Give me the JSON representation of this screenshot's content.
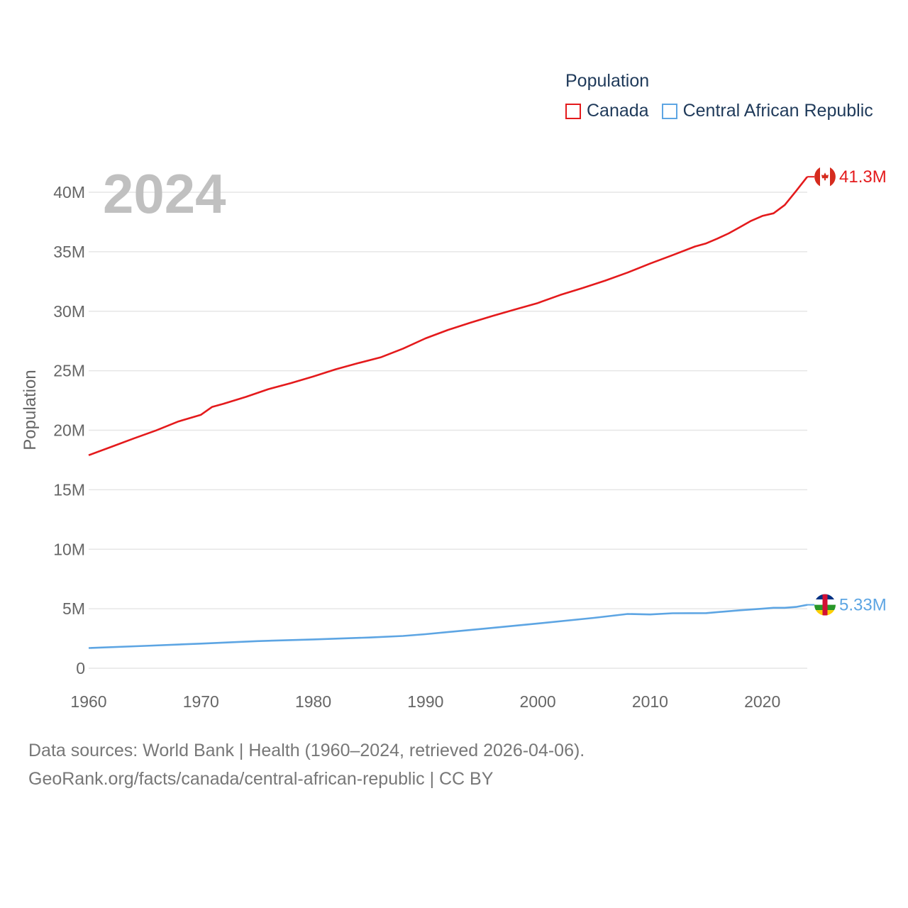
{
  "legend": {
    "title": "Population",
    "items": [
      {
        "label": "Canada",
        "color": "#e41a1c"
      },
      {
        "label": "Central African Republic",
        "color": "#5da5e3"
      }
    ]
  },
  "year_display": "2024",
  "footer": {
    "line1": "Data sources: World Bank | Health (1960–2024, retrieved 2026-04-06).",
    "line2": "GeoRank.org/facts/canada/central-african-republic | CC BY"
  },
  "chart_data": {
    "type": "line",
    "title": "",
    "xlabel": "",
    "ylabel": "Population",
    "xlim": [
      1960,
      2024
    ],
    "ylim": [
      0,
      42000000
    ],
    "x_ticks": [
      1960,
      1970,
      1980,
      1990,
      2000,
      2010,
      2020
    ],
    "x_tick_labels": [
      "1960",
      "1970",
      "1980",
      "1990",
      "2000",
      "2010",
      "2020"
    ],
    "y_ticks": [
      0,
      5000000,
      10000000,
      15000000,
      20000000,
      25000000,
      30000000,
      35000000,
      40000000
    ],
    "y_tick_labels": [
      "0",
      "5M",
      "10M",
      "15M",
      "20M",
      "25M",
      "30M",
      "35M",
      "40M"
    ],
    "grid": true,
    "series": [
      {
        "name": "Canada",
        "color": "#e41a1c",
        "end_label": "41.3M",
        "x": [
          1960,
          1962,
          1964,
          1966,
          1968,
          1970,
          1971,
          1972,
          1974,
          1976,
          1978,
          1980,
          1982,
          1984,
          1986,
          1988,
          1990,
          1992,
          1994,
          1996,
          1998,
          2000,
          2002,
          2004,
          2006,
          2008,
          2010,
          2012,
          2014,
          2015,
          2016,
          2017,
          2018,
          2019,
          2020,
          2021,
          2022,
          2023,
          2024
        ],
        "values": [
          17900000,
          18600000,
          19300000,
          19980000,
          20740000,
          21300000,
          21960000,
          22220000,
          22800000,
          23450000,
          23960000,
          24520000,
          25120000,
          25640000,
          26120000,
          26860000,
          27720000,
          28430000,
          29040000,
          29610000,
          30160000,
          30690000,
          31370000,
          31950000,
          32570000,
          33250000,
          34000000,
          34710000,
          35440000,
          35700000,
          36110000,
          36540000,
          37070000,
          37600000,
          38010000,
          38230000,
          38930000,
          40100000,
          41300000
        ]
      },
      {
        "name": "Central African Republic",
        "color": "#5da5e3",
        "end_label": "5.33M",
        "x": [
          1960,
          1965,
          1970,
          1975,
          1980,
          1985,
          1988,
          1990,
          1995,
          2000,
          2005,
          2008,
          2010,
          2012,
          2015,
          2018,
          2020,
          2021,
          2022,
          2023,
          2024
        ],
        "values": [
          1700000,
          1880000,
          2070000,
          2280000,
          2420000,
          2580000,
          2710000,
          2860000,
          3300000,
          3760000,
          4230000,
          4560000,
          4520000,
          4620000,
          4630000,
          4870000,
          5000000,
          5080000,
          5080000,
          5150000,
          5330000
        ]
      }
    ]
  }
}
